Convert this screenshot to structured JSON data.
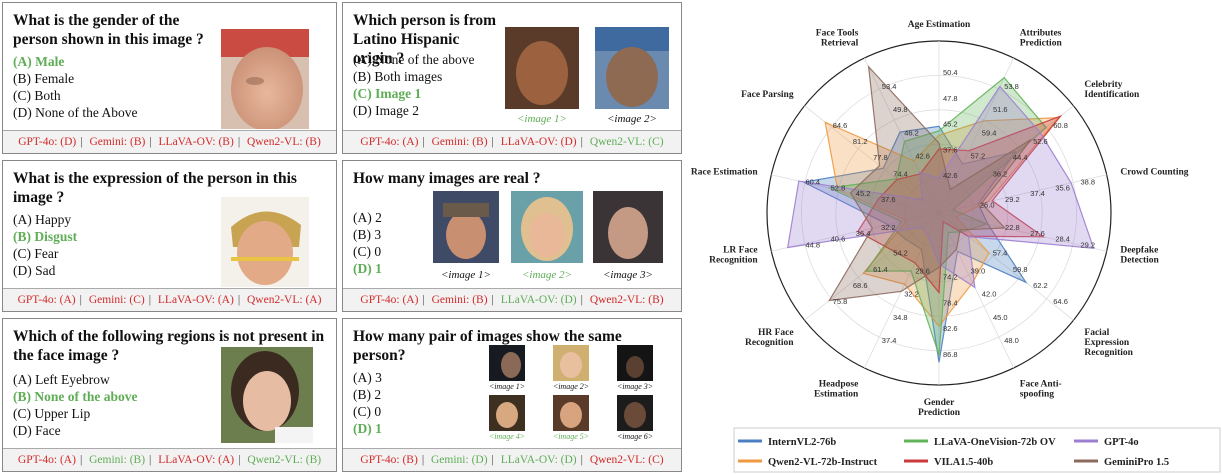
{
  "cards": [
    {
      "question": "What is the gender of the person shown in this image ?",
      "options": [
        "(A)  Male",
        "(B)  Female",
        "(C)  Both",
        "(D)  None of the Above"
      ],
      "answer": 0,
      "images": [],
      "preds": [
        {
          "t": "GPT-4o: (D)",
          "ok": false
        },
        {
          "t": "Gemini: (B)",
          "ok": false
        },
        {
          "t": "LLaVA-OV: (B)",
          "ok": false
        },
        {
          "t": "Qwen2-VL: (B)",
          "ok": false
        }
      ]
    },
    {
      "question": "Which person is from Latino Hispanic origin ?",
      "options": [
        "(A)  None of the above",
        "(B)  Both images",
        "(C)  Image 1",
        "(D)  Image 2"
      ],
      "answer": 2,
      "images": [
        "<image 1>",
        "<image 2>"
      ],
      "image_correct": [
        true,
        false
      ],
      "preds": [
        {
          "t": "GPT-4o: (A)",
          "ok": false
        },
        {
          "t": "Gemini: (B)",
          "ok": false
        },
        {
          "t": "LLaVA-OV: (D)",
          "ok": false
        },
        {
          "t": "Qwen2-VL: (C)",
          "ok": true
        }
      ]
    },
    {
      "question": "What is the expression of the person in this image ?",
      "options": [
        "(A)  Happy",
        "(B)  Disgust",
        "(C)  Fear",
        "(D)  Sad"
      ],
      "answer": 1,
      "images": [],
      "preds": [
        {
          "t": "GPT-4o: (A)",
          "ok": false
        },
        {
          "t": "Gemini: (C)",
          "ok": false
        },
        {
          "t": "LLaVA-OV: (A)",
          "ok": false
        },
        {
          "t": "Qwen2-VL: (A)",
          "ok": false
        }
      ]
    },
    {
      "question": "How many images are real ?",
      "options": [
        "(A)  2",
        "(B)  3",
        "(C)  0",
        "(D)  1"
      ],
      "answer": 3,
      "images": [
        "<image 1>",
        "<image 2>",
        "<image 3>"
      ],
      "image_correct": [
        false,
        true,
        false
      ],
      "preds": [
        {
          "t": "GPT-4o: (A)",
          "ok": false
        },
        {
          "t": "Gemini: (B)",
          "ok": false
        },
        {
          "t": "LLaVA-OV: (D)",
          "ok": true
        },
        {
          "t": "Qwen2-VL: (B)",
          "ok": false
        }
      ]
    },
    {
      "question": "Which of the following regions is not present in the face image ?",
      "options": [
        "(A)  Left Eyebrow",
        "(B)  None of the above",
        "(C)  Upper Lip",
        "(D)  Face"
      ],
      "answer": 1,
      "images": [],
      "preds": [
        {
          "t": "GPT-4o: (A)",
          "ok": false
        },
        {
          "t": "Gemini: (B)",
          "ok": true
        },
        {
          "t": "LLaVA-OV: (A)",
          "ok": false
        },
        {
          "t": "Qwen2-VL: (B)",
          "ok": true
        }
      ]
    },
    {
      "question": "How many pair of images show the same person?",
      "options": [
        "(A)  3",
        "(B)  2",
        "(C)  0",
        "(D)  1"
      ],
      "answer": 3,
      "images": [
        "<image 1>",
        "<image 2>",
        "<image 3>",
        "<image 4>",
        "<image 5>",
        "<image 6>"
      ],
      "image_correct": [
        false,
        false,
        false,
        true,
        true,
        false
      ],
      "preds": [
        {
          "t": "GPT-4o: (B)",
          "ok": false
        },
        {
          "t": "Gemini: (D)",
          "ok": true
        },
        {
          "t": "LLaVA-OV: (D)",
          "ok": true
        },
        {
          "t": "Qwen2-VL: (C)",
          "ok": false
        }
      ]
    }
  ],
  "colors": {
    "correct": "#5fad56",
    "wrong": "#d42a2a"
  },
  "chart_data": {
    "type": "radar",
    "axes": [
      "Age Estimation",
      "Attributes Prediction",
      "Celebrity Identification",
      "Crowd Counting",
      "Deepfake Detection",
      "Facial Expression Recognition",
      "Face Anti-spoofing",
      "Gender Prediction",
      "Headpose Estimation",
      "HR Face Recognition",
      "LR Face Recognition",
      "Race Estimation",
      "Face Parsing",
      "Face Tools Retrieval"
    ],
    "rlim": [
      0,
      100
    ],
    "series": [
      {
        "name": "InternVL2-76b",
        "color": "#4a7fc1",
        "values": [
          50.4,
          31.6,
          57.2,
          23.4,
          29.2,
          64.6,
          24.8,
          86.8,
          23.4,
          24.6,
          30.4,
          80.6,
          41.6,
          52.2
        ]
      },
      {
        "name": "Qwen2-VL-72b-Instruct",
        "color": "#ef9840",
        "values": [
          45.2,
          59.4,
          89.0,
          29.2,
          10.2,
          37.2,
          45.0,
          65.8,
          46.0,
          56.2,
          19.2,
          60.4,
          84.6,
          33.6
        ]
      },
      {
        "name": "LLaVA-OneVision-72b OV",
        "color": "#62b45a",
        "values": [
          47.8,
          87.4,
          79.6,
          8.4,
          28.4,
          17.6,
          12.6,
          82.6,
          37.4,
          54.2,
          22.4,
          65.2,
          31.8,
          46.2
        ]
      },
      {
        "name": "VILA1.5-40b",
        "color": "#cb3a3a",
        "values": [
          37.2,
          40.2,
          90.4,
          31.8,
          62.2,
          21.6,
          5.6,
          46.2,
          32.2,
          34.8,
          48.4,
          36.2,
          31.2,
          25.2
        ]
      },
      {
        "name": "GPT-4o",
        "color": "#9c7fd0",
        "values": [
          20.0,
          81.6,
          75.2,
          78.8,
          92.2,
          22.0,
          48.0,
          29.6,
          14.6,
          13.2,
          90.2,
          83.6,
          12.2,
          26.2
        ]
      },
      {
        "name": "GeminiPro 1.5",
        "color": "#8c6a5e",
        "values": [
          40.6,
          15.2,
          68.6,
          25.4,
          39.2,
          15.8,
          23.4,
          31.6,
          50.6,
          81.6,
          39.8,
          52.8,
          44.2,
          94.4
        ]
      }
    ],
    "tick_labels": [
      [
        "50.4",
        "47.8",
        "45.2",
        "37.6",
        "42.6"
      ],
      [
        "53.8",
        "51.6",
        "59.4",
        "57.2"
      ],
      [
        "60.8",
        "52.6",
        "44.4",
        "36.2"
      ],
      [
        "38.8",
        "35.6",
        "37.4",
        "29.2",
        "26.0"
      ],
      [
        "29.2",
        "28.4",
        "27.6",
        "22.8"
      ],
      [
        "64.6",
        "62.2",
        "59.8",
        "57.4"
      ],
      [
        "48.0",
        "45.0",
        "42.0",
        "39.0"
      ],
      [
        "86.8",
        "82.6",
        "78.4",
        "74.2"
      ],
      [
        "37.4",
        "34.8",
        "32.2",
        "29.6"
      ],
      [
        "75.8",
        "68.6",
        "61.4",
        "54.2"
      ],
      [
        "44.8",
        "40.6",
        "36.4",
        "32.2"
      ],
      [
        "60.4",
        "52.8",
        "45.2",
        "37.6"
      ],
      [
        "84.6",
        "81.2",
        "77.8",
        "74.4"
      ],
      [
        "53.4",
        "49.8",
        "46.2",
        "42.6"
      ]
    ]
  }
}
